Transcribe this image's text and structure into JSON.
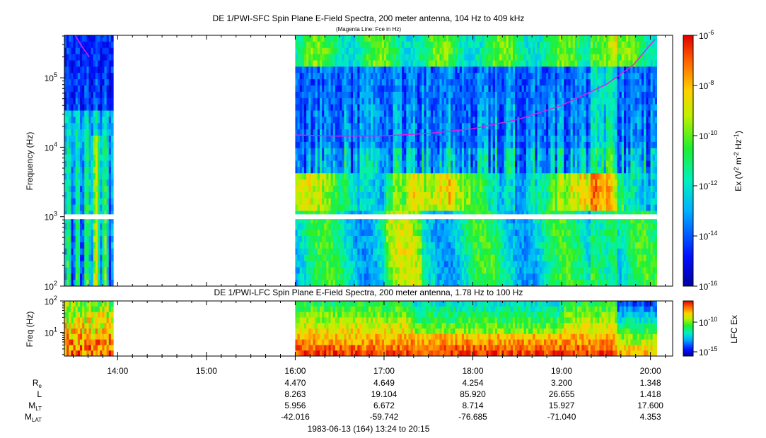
{
  "chart_data": [
    {
      "type": "heatmap",
      "title": "DE 1/PWI-SFC  Spin Plane E-Field Spectra, 200 meter antenna, 104 Hz to 409 kHz",
      "subtitle": "(Magenta Line: Fce in Hz)",
      "ylabel": "Frequency (Hz)",
      "yscale": "log",
      "ylim": [
        100,
        409000
      ],
      "y_ticks": [
        {
          "base": "10",
          "exp": "2"
        },
        {
          "base": "10",
          "exp": "3"
        },
        {
          "base": "10",
          "exp": "4"
        },
        {
          "base": "10",
          "exp": "5"
        }
      ],
      "colorbar": {
        "label_prefix": "Ex (V",
        "label_sup1": "2",
        "label_mid1": " m",
        "label_sup2": "-2",
        "label_mid2": " Hz",
        "label_sup3": "-1",
        "label_suffix": ")",
        "ticks": [
          {
            "base": "10",
            "exp": "-6"
          },
          {
            "base": "10",
            "exp": "-8"
          },
          {
            "base": "10",
            "exp": "-10"
          },
          {
            "base": "10",
            "exp": "-12"
          },
          {
            "base": "10",
            "exp": "-14"
          },
          {
            "base": "10",
            "exp": "-16"
          }
        ]
      },
      "coverage_hours": [
        [
          13.4,
          13.95
        ],
        [
          16.0,
          20.07
        ]
      ],
      "fce_line": {
        "color": "#e020e0",
        "points": [
          [
            13.52,
            409000
          ],
          [
            13.6,
            280000
          ],
          [
            13.68,
            200000
          ],
          [
            16.0,
            15000
          ],
          [
            16.5,
            14500
          ],
          [
            17.0,
            14600
          ],
          [
            17.5,
            15800
          ],
          [
            18.0,
            18500
          ],
          [
            18.5,
            25000
          ],
          [
            19.0,
            40000
          ],
          [
            19.5,
            80000
          ],
          [
            19.8,
            150000
          ],
          [
            20.0,
            300000
          ],
          [
            20.05,
            360000
          ]
        ]
      }
    },
    {
      "type": "heatmap",
      "title": "DE 1/PWI-LFC  Spin Plane E-Field Spectra, 200 meter antenna, 1.78 Hz to 100 Hz",
      "ylabel": "Freq (Hz)",
      "yscale": "log",
      "ylim": [
        1.78,
        100
      ],
      "y_ticks": [
        {
          "base": "10",
          "exp": "2"
        },
        {
          "base": "10",
          "exp": "1"
        }
      ],
      "colorbar": {
        "label": "LFC Ex",
        "ticks": [
          {
            "base": "10",
            "exp": "-10"
          },
          {
            "base": "10",
            "exp": "-15"
          }
        ]
      },
      "coverage_hours": [
        [
          13.4,
          13.95
        ],
        [
          16.0,
          20.07
        ]
      ]
    }
  ],
  "x_axis": {
    "range_hours": [
      13.4,
      20.25
    ],
    "tick_labels": [
      {
        "hour": 14,
        "label": "14:00"
      },
      {
        "hour": 15,
        "label": "15:00"
      },
      {
        "hour": 16,
        "label": "16:00"
      },
      {
        "hour": 17,
        "label": "17:00"
      },
      {
        "hour": 18,
        "label": "18:00"
      },
      {
        "hour": 19,
        "label": "19:00"
      },
      {
        "hour": 20,
        "label": "20:00"
      }
    ]
  },
  "ephemeris": {
    "rows": [
      {
        "label": "R",
        "sub": "e",
        "values": [
          "4.470",
          "4.649",
          "4.254",
          "3.200",
          "1.348"
        ]
      },
      {
        "label": "L",
        "sub": "",
        "values": [
          "8.263",
          "19.104",
          "85.920",
          "26.655",
          "1.418"
        ]
      },
      {
        "label": "M",
        "sub": "LT",
        "values": [
          "5.956",
          "6.672",
          "8.714",
          "15.927",
          "17.600"
        ]
      },
      {
        "label": "M",
        "sub": "LAT",
        "values": [
          "-42.016",
          "-59.742",
          "-76.685",
          "-71.040",
          "4.353"
        ]
      }
    ],
    "hours": [
      16,
      17,
      18,
      19,
      20
    ]
  },
  "footer": "1983-06-13 (164) 13:24 to 20:15"
}
